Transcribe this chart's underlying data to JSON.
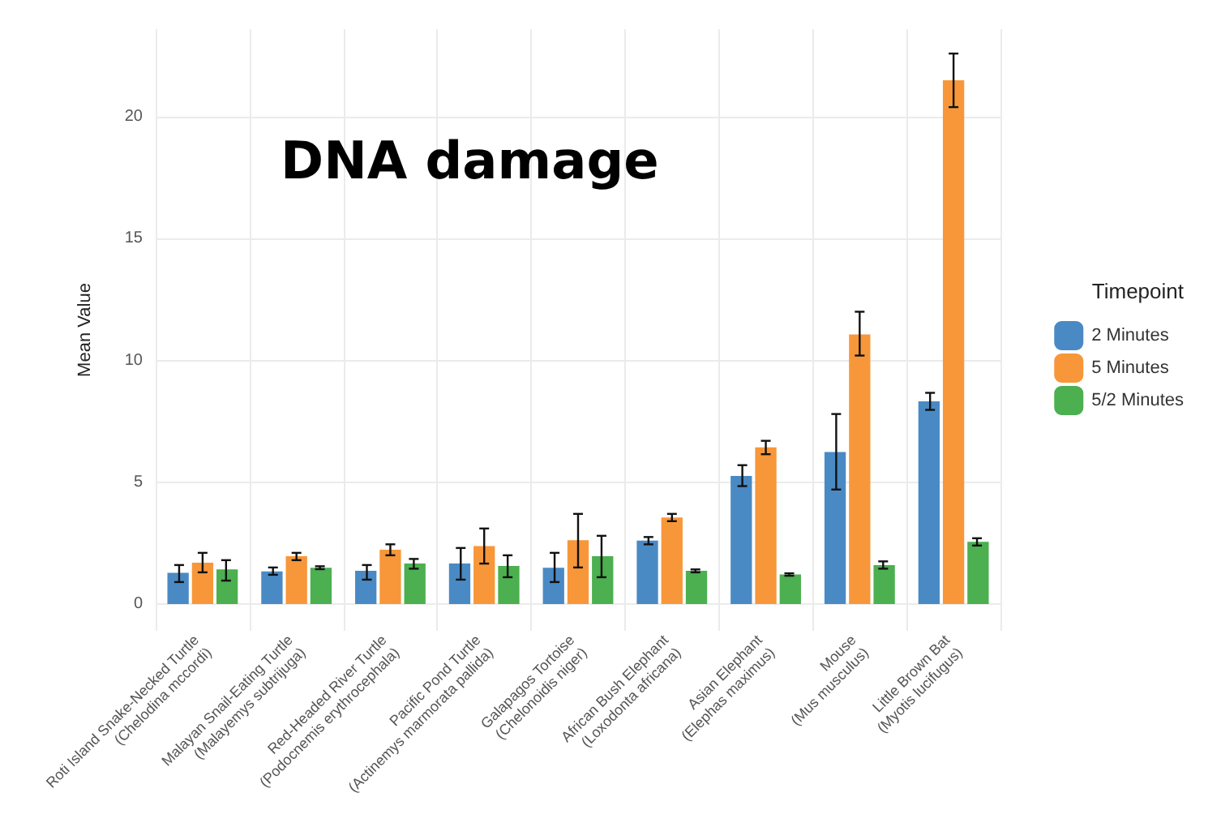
{
  "chart_data": {
    "type": "bar",
    "title": "DNA damage",
    "ylabel": "Mean Value",
    "legend_title": "Timepoint",
    "legend": "right",
    "grid": true,
    "categories": [
      "Roti Island Snake-Necked Turtle\n(Chelodina mccordi)",
      "Malayan Snail-Eating Turtle\n(Malayemys subtrijuga)",
      "Red-Headed River Turtle\n(Podocnemis erythrocephala)",
      "Pacific Pond Turtle\n(Actinemys marmorata pallida)",
      "Galapagos Tortoise\n(Chelonoidis niger)",
      "African Bush Elephant\n(Loxodonta africana)",
      "Asian Elephant\n(Elephas maximus)",
      "Mouse\n(Mus musculus)",
      "Little Brown Bat\n(Myotis lucifugus)"
    ],
    "ylim": [
      -1.1,
      23.6
    ],
    "yticks": [
      0,
      5,
      10,
      15,
      20
    ],
    "series": [
      {
        "name": "2 Minutes",
        "color": "#4a8ac4",
        "values": [
          1.28,
          1.34,
          1.36,
          1.66,
          1.49,
          2.6,
          5.26,
          6.24,
          8.32
        ],
        "errors": [
          [
            0.9,
            1.6
          ],
          [
            1.2,
            1.5
          ],
          [
            1.0,
            1.6
          ],
          [
            1.0,
            2.3
          ],
          [
            0.9,
            2.1
          ],
          [
            2.45,
            2.75
          ],
          [
            4.84,
            5.7
          ],
          [
            4.7,
            7.8
          ],
          [
            7.97,
            8.67
          ]
        ]
      },
      {
        "name": "5 Minutes",
        "color": "#f7973a",
        "values": [
          1.7,
          1.96,
          2.23,
          2.38,
          2.62,
          3.55,
          6.43,
          11.07,
          21.5
        ],
        "errors": [
          [
            1.3,
            2.1
          ],
          [
            1.8,
            2.1
          ],
          [
            2.0,
            2.45
          ],
          [
            1.66,
            3.1
          ],
          [
            1.5,
            3.7
          ],
          [
            3.4,
            3.7
          ],
          [
            6.15,
            6.7
          ],
          [
            10.2,
            12.0
          ],
          [
            20.4,
            22.6
          ]
        ]
      },
      {
        "name": "5/2 Minutes",
        "color": "#4caf50",
        "values": [
          1.42,
          1.49,
          1.66,
          1.56,
          1.96,
          1.36,
          1.21,
          1.6,
          2.55
        ],
        "errors": [
          [
            0.96,
            1.8
          ],
          [
            1.43,
            1.55
          ],
          [
            1.45,
            1.85
          ],
          [
            1.1,
            2.0
          ],
          [
            1.1,
            2.8
          ],
          [
            1.3,
            1.42
          ],
          [
            1.16,
            1.26
          ],
          [
            1.45,
            1.75
          ],
          [
            2.4,
            2.7
          ]
        ]
      }
    ]
  }
}
